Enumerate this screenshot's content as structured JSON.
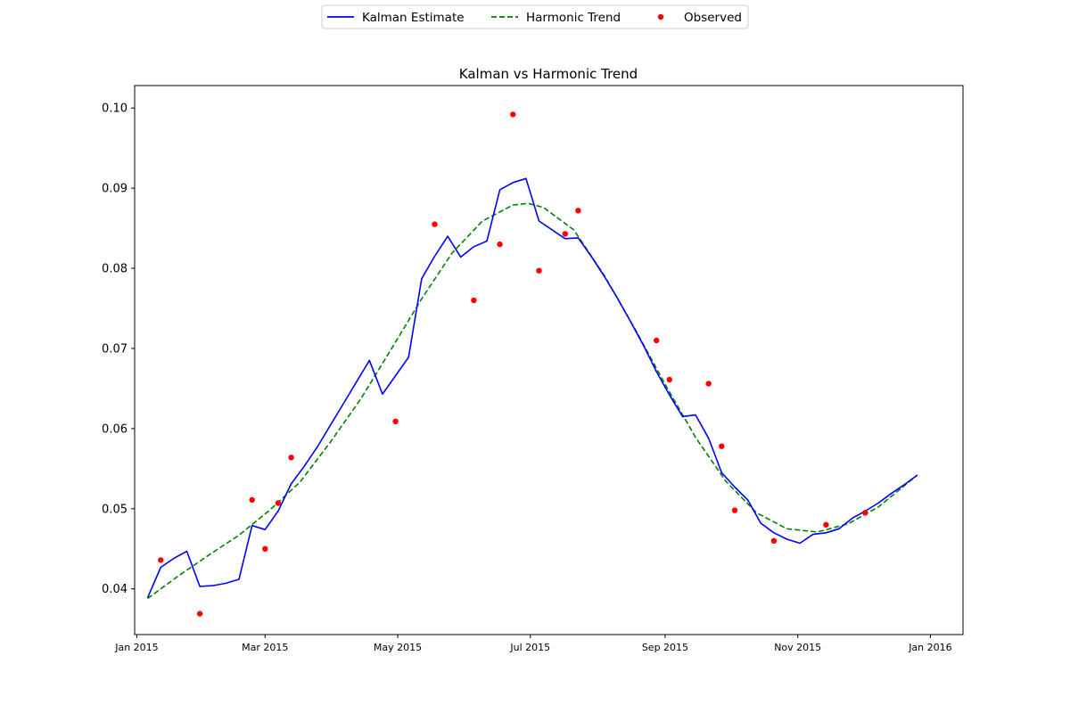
{
  "chart_data": {
    "type": "line",
    "title": "Kalman vs Harmonic Trend",
    "xlabel": "",
    "ylabel": "",
    "x_ticks": [
      "Jan 2015",
      "Mar 2015",
      "May 2015",
      "Jul 2015",
      "Sep 2015",
      "Nov 2015",
      "Jan 2016"
    ],
    "y_ticks": [
      0.04,
      0.05,
      0.06,
      0.07,
      0.08,
      0.09,
      0.1
    ],
    "xlim": [
      "2014-12-31",
      "2016-01-16"
    ],
    "ylim": [
      0.0343,
      0.1028
    ],
    "grid": false,
    "legend_position": "top-center",
    "colors": {
      "kalman": "#0000ff",
      "harmonic": "#008000",
      "observed": "#ff0000"
    },
    "series": [
      {
        "name": "Kalman Estimate",
        "style": "solid",
        "x": [
          "2015-01-06",
          "2015-01-12",
          "2015-01-18",
          "2015-01-24",
          "2015-01-30",
          "2015-02-05",
          "2015-02-11",
          "2015-02-17",
          "2015-02-23",
          "2015-03-01",
          "2015-03-07",
          "2015-03-13",
          "2015-03-19",
          "2015-03-25",
          "2015-03-31",
          "2015-04-06",
          "2015-04-12",
          "2015-04-18",
          "2015-04-24",
          "2015-04-30",
          "2015-05-06",
          "2015-05-12",
          "2015-05-18",
          "2015-05-24",
          "2015-05-30",
          "2015-06-05",
          "2015-06-11",
          "2015-06-17",
          "2015-06-23",
          "2015-06-29",
          "2015-07-05",
          "2015-07-11",
          "2015-07-17",
          "2015-07-23",
          "2015-07-29",
          "2015-08-04",
          "2015-08-10",
          "2015-08-16",
          "2015-08-22",
          "2015-08-28",
          "2015-09-03",
          "2015-09-09",
          "2015-09-15",
          "2015-09-21",
          "2015-09-27",
          "2015-10-03",
          "2015-10-09",
          "2015-10-15",
          "2015-10-21",
          "2015-10-27",
          "2015-11-02",
          "2015-11-08",
          "2015-11-14",
          "2015-11-20",
          "2015-11-26",
          "2015-12-02",
          "2015-12-08",
          "2015-12-14",
          "2015-12-20",
          "2015-12-26"
        ],
        "values": [
          0.0389,
          0.0427,
          0.0438,
          0.0447,
          0.0403,
          0.0404,
          0.0407,
          0.0412,
          0.0479,
          0.0474,
          0.0497,
          0.0531,
          0.0553,
          0.0577,
          0.0604,
          0.0631,
          0.0658,
          0.0685,
          0.0643,
          0.0666,
          0.0689,
          0.0787,
          0.0815,
          0.084,
          0.0814,
          0.0827,
          0.0834,
          0.0898,
          0.0907,
          0.0912,
          0.0859,
          0.0848,
          0.0837,
          0.0838,
          0.0815,
          0.079,
          0.0763,
          0.0734,
          0.0704,
          0.0671,
          0.0642,
          0.0615,
          0.0617,
          0.0588,
          0.0545,
          0.0527,
          0.0511,
          0.0482,
          0.047,
          0.0462,
          0.0457,
          0.0468,
          0.047,
          0.0475,
          0.0488,
          0.0497,
          0.0507,
          0.0519,
          0.053,
          0.0542
        ]
      },
      {
        "name": "Harmonic Trend",
        "style": "dashed",
        "x": [
          "2015-01-06",
          "2015-01-20",
          "2015-02-03",
          "2015-02-17",
          "2015-03-03",
          "2015-03-17",
          "2015-03-31",
          "2015-04-14",
          "2015-04-28",
          "2015-05-12",
          "2015-05-26",
          "2015-06-09",
          "2015-06-23",
          "2015-06-30",
          "2015-07-07",
          "2015-07-21",
          "2015-08-04",
          "2015-08-18",
          "2015-09-01",
          "2015-09-15",
          "2015-09-29",
          "2015-10-13",
          "2015-10-27",
          "2015-11-10",
          "2015-11-24",
          "2015-12-08",
          "2015-12-26"
        ],
        "values": [
          0.0388,
          0.0416,
          0.0442,
          0.0467,
          0.0498,
          0.0533,
          0.0583,
          0.0637,
          0.0699,
          0.0762,
          0.0819,
          0.0859,
          0.0879,
          0.0881,
          0.0876,
          0.0848,
          0.0791,
          0.0725,
          0.0655,
          0.0589,
          0.0534,
          0.0495,
          0.0475,
          0.0471,
          0.0481,
          0.0502,
          0.0542
        ]
      },
      {
        "name": "Observed",
        "style": "points",
        "x": [
          "2015-01-12",
          "2015-01-30",
          "2015-02-23",
          "2015-03-01",
          "2015-03-07",
          "2015-03-13",
          "2015-04-30",
          "2015-05-18",
          "2015-06-05",
          "2015-06-17",
          "2015-06-23",
          "2015-07-05",
          "2015-07-17",
          "2015-07-23",
          "2015-08-28",
          "2015-09-03",
          "2015-09-21",
          "2015-09-27",
          "2015-10-03",
          "2015-10-21",
          "2015-11-14",
          "2015-12-02"
        ],
        "values": [
          0.0436,
          0.0369,
          0.0511,
          0.045,
          0.0507,
          0.0564,
          0.0609,
          0.0855,
          0.076,
          0.083,
          0.0992,
          0.0797,
          0.0843,
          0.0872,
          0.071,
          0.0661,
          0.0656,
          0.0578,
          0.0498,
          0.046,
          0.048,
          0.0495
        ]
      }
    ]
  }
}
